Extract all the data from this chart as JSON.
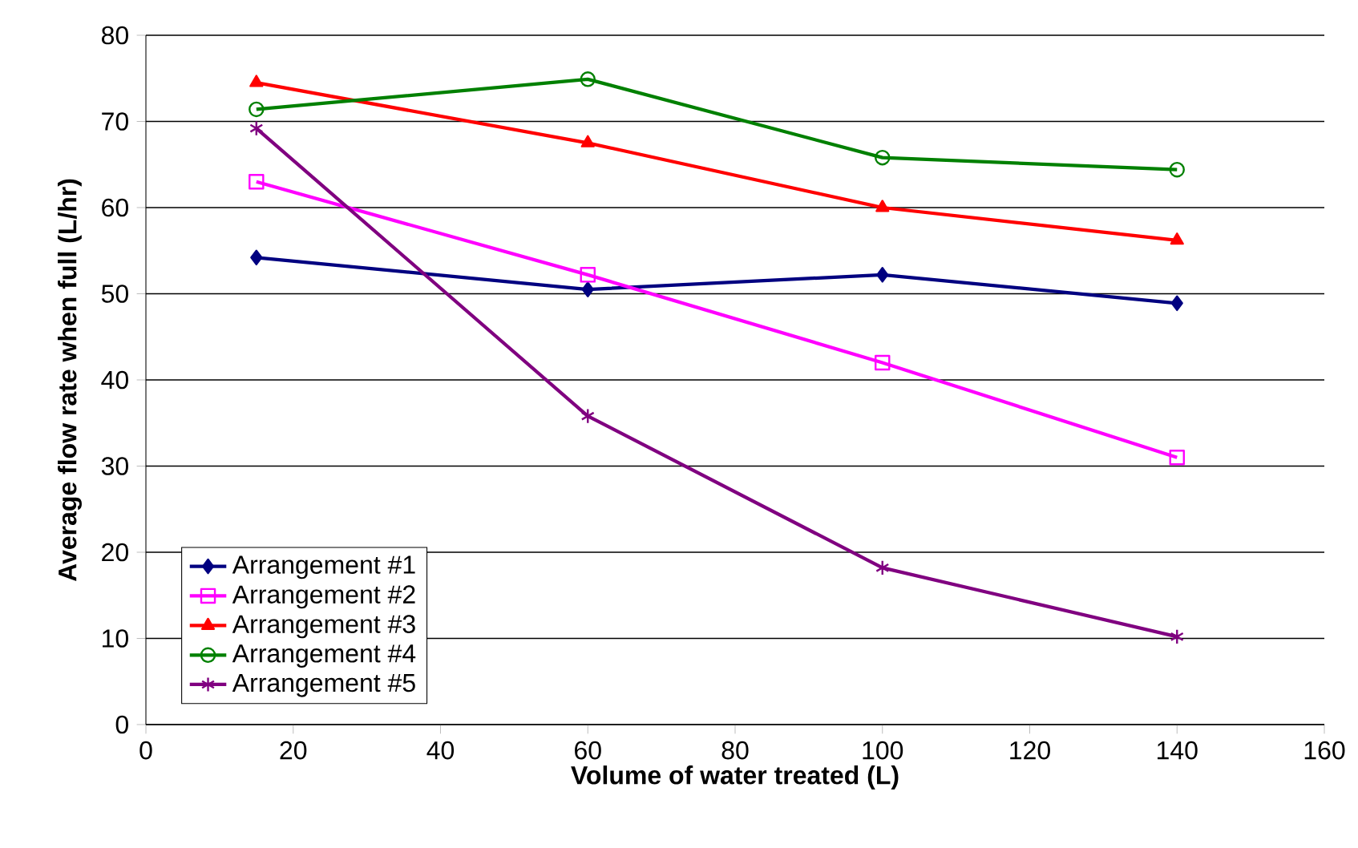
{
  "chart_data": {
    "type": "line",
    "xlabel": "Volume of water treated (L)",
    "ylabel": "Average flow rate when full (L/hr)",
    "x": [
      15,
      60,
      100,
      140
    ],
    "series": [
      {
        "name": "Arrangement #1",
        "color": "#000080",
        "marker": "diamond",
        "values": [
          54.2,
          50.5,
          52.2,
          48.9
        ]
      },
      {
        "name": "Arrangement #2",
        "color": "#ff00ff",
        "marker": "square",
        "values": [
          63,
          52.2,
          42,
          31
        ]
      },
      {
        "name": "Arrangement #3",
        "color": "#ff0000",
        "marker": "triangle",
        "values": [
          74.5,
          67.5,
          60,
          56.2
        ]
      },
      {
        "name": "Arrangement #4",
        "color": "#008000",
        "marker": "circle",
        "values": [
          71.4,
          74.9,
          65.8,
          64.4
        ]
      },
      {
        "name": "Arrangement #5",
        "color": "#800080",
        "marker": "cross",
        "values": [
          69.2,
          35.8,
          18.2,
          10.2
        ]
      }
    ],
    "xlim": [
      0,
      160
    ],
    "xticks": [
      0,
      20,
      40,
      60,
      80,
      100,
      120,
      140,
      160
    ],
    "ylim": [
      0,
      80
    ],
    "yticks": [
      0,
      10,
      20,
      30,
      40,
      50,
      60,
      70,
      80
    ],
    "grid": "y",
    "legend": "bottom left",
    "line_style": "solid"
  }
}
